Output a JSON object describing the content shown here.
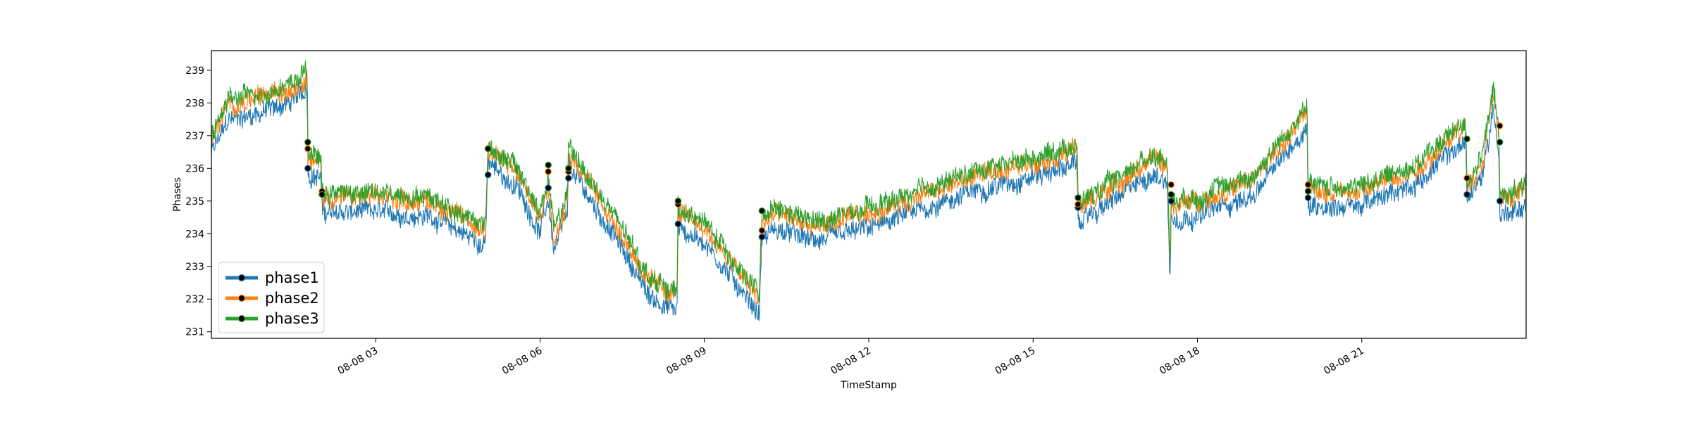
{
  "chart_data": {
    "type": "line",
    "xlabel": "TimeStamp",
    "ylabel": "Phases",
    "x_range_hours": [
      0,
      24
    ],
    "ylim": [
      230.8,
      239.6
    ],
    "y_ticks": [
      231,
      232,
      233,
      234,
      235,
      236,
      237,
      238,
      239
    ],
    "x_ticks": [
      {
        "hour": 3,
        "label": "08-08 03"
      },
      {
        "hour": 6,
        "label": "08-08 06"
      },
      {
        "hour": 9,
        "label": "08-08 09"
      },
      {
        "hour": 12,
        "label": "08-08 12"
      },
      {
        "hour": 15,
        "label": "08-08 15"
      },
      {
        "hour": 18,
        "label": "08-08 18"
      },
      {
        "hour": 21,
        "label": "08-08 21"
      }
    ],
    "grid": false,
    "legend_position": "lower-left",
    "series": [
      {
        "name": "phase1",
        "color": "#1f77b4",
        "offset": -0.45
      },
      {
        "name": "phase2",
        "color": "#ff7f0e",
        "offset": 0.0
      },
      {
        "name": "phase3",
        "color": "#2ca02c",
        "offset": 0.15
      }
    ],
    "base_profile": {
      "x": [
        0,
        0.3,
        1.0,
        1.5,
        1.75,
        1.76,
        2.0,
        2.02,
        3.0,
        4.0,
        5.0,
        5.05,
        5.6,
        6.0,
        6.15,
        6.25,
        6.5,
        6.52,
        6.6,
        6.8,
        7.5,
        8.0,
        8.5,
        8.52,
        9.0,
        10.0,
        10.05,
        10.3,
        11.0,
        12.0,
        13.0,
        14.0,
        15.0,
        15.8,
        15.82,
        16.5,
        17.2,
        17.45,
        17.5,
        17.52,
        18.0,
        19.0,
        19.9,
        20.0,
        20.02,
        21.0,
        22.0,
        22.9,
        22.92,
        23.2,
        23.4,
        23.5,
        23.52,
        24.0
      ],
      "y": [
        236.9,
        237.9,
        238.2,
        238.5,
        238.9,
        236.3,
        236.2,
        235.1,
        235.1,
        235.0,
        234.1,
        236.6,
        235.8,
        234.5,
        235.5,
        234.0,
        235.0,
        236.5,
        236.3,
        235.8,
        234.0,
        232.5,
        232.1,
        234.6,
        234.2,
        232.0,
        234.3,
        234.6,
        234.2,
        234.6,
        235.2,
        235.8,
        236.2,
        236.6,
        234.8,
        235.5,
        236.3,
        236.0,
        233.0,
        234.9,
        235.0,
        235.6,
        237.5,
        237.8,
        235.3,
        235.3,
        236.0,
        237.3,
        235.5,
        236.2,
        238.3,
        237.0,
        235.0,
        235.3
      ]
    },
    "markers": [
      {
        "x": 1.76,
        "values": [
          236.0,
          236.6,
          236.8
        ]
      },
      {
        "x": 2.02,
        "values": [
          235.2,
          235.3,
          235.2
        ]
      },
      {
        "x": 5.05,
        "values": [
          235.8,
          236.6,
          236.6
        ]
      },
      {
        "x": 6.15,
        "values": [
          235.4,
          235.9,
          236.1
        ]
      },
      {
        "x": 6.52,
        "values": [
          235.7,
          235.9,
          236.0
        ]
      },
      {
        "x": 8.52,
        "values": [
          234.3,
          234.9,
          235.0
        ]
      },
      {
        "x": 10.05,
        "values": [
          233.9,
          234.1,
          234.7
        ]
      },
      {
        "x": 15.82,
        "values": [
          234.8,
          234.9,
          235.1
        ]
      },
      {
        "x": 17.52,
        "values": [
          235.0,
          235.5,
          235.2
        ]
      },
      {
        "x": 20.02,
        "values": [
          235.1,
          235.5,
          235.3
        ]
      },
      {
        "x": 22.92,
        "values": [
          235.2,
          235.7,
          236.9
        ]
      },
      {
        "x": 23.52,
        "values": [
          235.0,
          237.3,
          236.8
        ]
      }
    ]
  }
}
